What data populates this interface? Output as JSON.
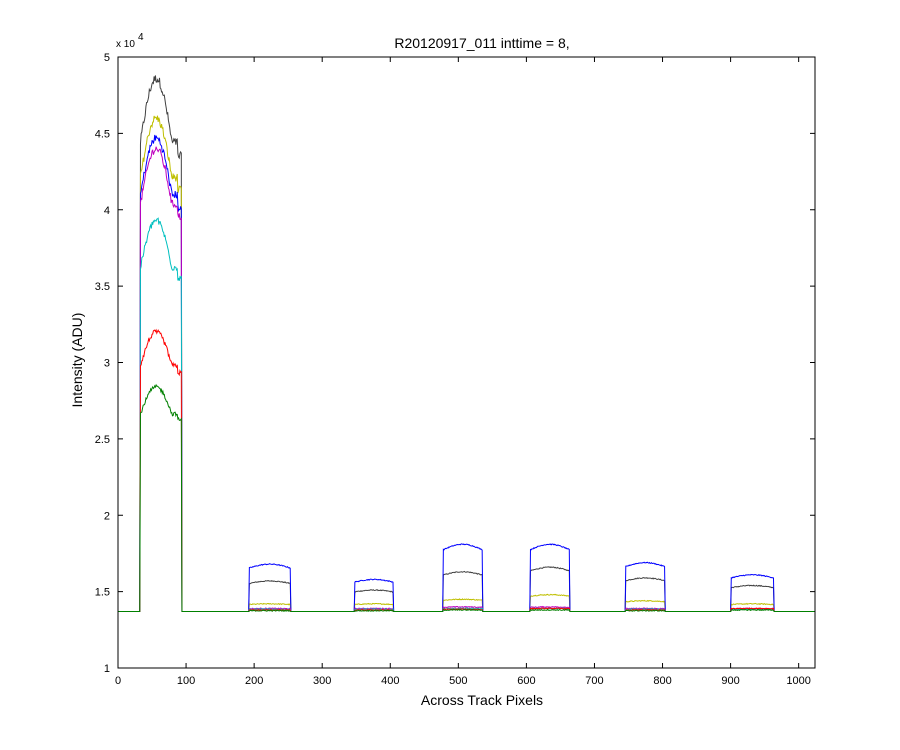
{
  "chart_data": {
    "type": "line",
    "title": "R20120917_011 inttime = 8,",
    "xlabel": "Across Track Pixels",
    "ylabel": "Intensity (ADU)",
    "xlim": [
      0,
      1024
    ],
    "ylim": [
      1,
      5
    ],
    "y_multiplier_label": "x 10",
    "y_multiplier_exponent": "4",
    "xticks": [
      0,
      100,
      200,
      300,
      400,
      500,
      600,
      700,
      800,
      900,
      1000
    ],
    "yticks": [
      1,
      1.5,
      2,
      2.5,
      3,
      3.5,
      4,
      4.5,
      5
    ],
    "xtick_labels": [
      "0",
      "100",
      "200",
      "300",
      "400",
      "500",
      "600",
      "700",
      "800",
      "900",
      "1000"
    ],
    "ytick_labels": [
      "1",
      "1.5",
      "2",
      "2.5",
      "3",
      "3.5",
      "4",
      "4.5",
      "5"
    ],
    "grid": false,
    "legend": "none",
    "baseline": 1.37,
    "blocks": [
      [
        33,
        93
      ],
      [
        193,
        253
      ],
      [
        348,
        404
      ],
      [
        478,
        535
      ],
      [
        606,
        663
      ],
      [
        746,
        803
      ],
      [
        901,
        963
      ]
    ],
    "series": [
      {
        "color": "#404040",
        "peaks": [
          4.86,
          1.57,
          1.51,
          1.63,
          1.66,
          1.59,
          1.54
        ]
      },
      {
        "color": "#bfbf00",
        "peaks": [
          4.6,
          1.42,
          1.42,
          1.45,
          1.48,
          1.44,
          1.42
        ]
      },
      {
        "color": "#0000ff",
        "peaks": [
          4.47,
          1.68,
          1.58,
          1.81,
          1.81,
          1.69,
          1.61
        ]
      },
      {
        "color": "#bf00bf",
        "peaks": [
          4.4,
          1.39,
          1.39,
          1.4,
          1.4,
          1.39,
          1.39
        ]
      },
      {
        "color": "#00bfbf",
        "peaks": [
          3.93,
          1.385,
          1.385,
          1.39,
          1.39,
          1.385,
          1.385
        ]
      },
      {
        "color": "#ff0000",
        "peaks": [
          3.2,
          1.38,
          1.38,
          1.385,
          1.39,
          1.38,
          1.39
        ]
      },
      {
        "color": "#008000",
        "peaks": [
          2.84,
          1.375,
          1.375,
          1.38,
          1.38,
          1.375,
          1.38
        ]
      }
    ]
  }
}
